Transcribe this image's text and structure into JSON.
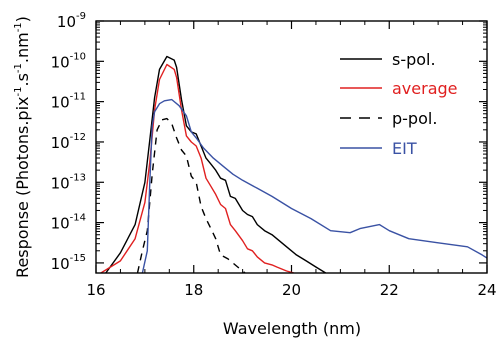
{
  "chart_data": {
    "type": "line",
    "title": "",
    "xlabel": "Wavelength (nm)",
    "ylabel_main": "Response (Photons.pix",
    "ylabel_exp1": "-1",
    "ylabel_mid": ".s",
    "ylabel_exp2": "-1",
    "ylabel_end": ".nm",
    "ylabel_exp3": "-1",
    "ylabel_close": ")",
    "xlim": [
      16,
      24
    ],
    "ylim_log10": [
      -15.25,
      -9
    ],
    "yscale": "log",
    "xticks": [
      16,
      18,
      20,
      22,
      24
    ],
    "xtick_labels": [
      "16",
      "18",
      "20",
      "22",
      "24"
    ],
    "yticks_log10": [
      -9,
      -10,
      -11,
      -12,
      -13,
      -14,
      -15
    ],
    "ytick_base": "10",
    "ytick_exponents": [
      "-9",
      "-10",
      "-11",
      "-12",
      "-13",
      "-14",
      "-15"
    ],
    "legend_position": "upper-right",
    "series": [
      {
        "name": "s-pol.",
        "color": "#000000",
        "dash": "solid",
        "x": [
          16.2,
          16.5,
          16.8,
          17.0,
          17.1,
          17.2,
          17.3,
          17.45,
          17.6,
          17.65,
          17.75,
          17.85,
          17.95,
          18.05,
          18.15,
          18.25,
          18.35,
          18.45,
          18.55,
          18.65,
          18.75,
          18.85,
          19.0,
          19.1,
          19.2,
          19.3,
          19.45,
          19.6,
          19.7,
          19.9,
          20.1,
          20.3,
          20.5,
          20.7
        ],
        "log10y": [
          -15.25,
          -14.75,
          -14.05,
          -13.0,
          -11.95,
          -10.9,
          -10.2,
          -9.88,
          -9.97,
          -10.15,
          -10.95,
          -11.6,
          -11.75,
          -11.8,
          -12.1,
          -12.4,
          -12.55,
          -12.7,
          -12.9,
          -12.95,
          -13.35,
          -13.4,
          -13.7,
          -13.8,
          -13.85,
          -14.05,
          -14.2,
          -14.3,
          -14.4,
          -14.6,
          -14.8,
          -14.95,
          -15.1,
          -15.25
        ]
      },
      {
        "name": "average",
        "color": "#e02020",
        "dash": "solid",
        "x": [
          16.1,
          16.5,
          16.8,
          17.0,
          17.1,
          17.2,
          17.3,
          17.45,
          17.6,
          17.65,
          17.75,
          17.85,
          17.95,
          18.05,
          18.15,
          18.25,
          18.35,
          18.45,
          18.55,
          18.65,
          18.75,
          18.85,
          19.0,
          19.1,
          19.2,
          19.3,
          19.45,
          19.6,
          19.7,
          19.9,
          20.05
        ],
        "log10y": [
          -15.25,
          -14.95,
          -14.4,
          -13.5,
          -12.5,
          -11.2,
          -10.45,
          -10.08,
          -10.2,
          -10.4,
          -11.2,
          -11.85,
          -12.0,
          -12.1,
          -12.4,
          -12.9,
          -13.1,
          -13.3,
          -13.55,
          -13.65,
          -14.05,
          -14.2,
          -14.45,
          -14.65,
          -14.7,
          -14.85,
          -15.0,
          -15.05,
          -15.1,
          -15.2,
          -15.25
        ]
      },
      {
        "name": "p-pol.",
        "color": "#000000",
        "dash": "dashed",
        "x": [
          16.85,
          16.95,
          17.05,
          17.15,
          17.25,
          17.35,
          17.45,
          17.55,
          17.65,
          17.75,
          17.85,
          17.95,
          18.05,
          18.15,
          18.25,
          18.35,
          18.45,
          18.55,
          18.7,
          18.9,
          19.05
        ],
        "log10y": [
          -15.25,
          -14.7,
          -14.2,
          -12.8,
          -11.7,
          -11.45,
          -11.42,
          -11.55,
          -11.9,
          -12.2,
          -12.35,
          -12.85,
          -13.0,
          -13.6,
          -13.9,
          -14.15,
          -14.4,
          -14.8,
          -14.9,
          -15.1,
          -15.25
        ]
      },
      {
        "name": "EIT",
        "color": "#3a52a4",
        "dash": "solid",
        "x": [
          16.95,
          17.05,
          17.1,
          17.15,
          17.2,
          17.3,
          17.4,
          17.55,
          17.7,
          17.85,
          17.95,
          18.05,
          18.2,
          18.4,
          18.6,
          18.8,
          19.0,
          19.3,
          19.6,
          20.0,
          20.4,
          20.8,
          21.2,
          21.4,
          21.6,
          21.8,
          22.0,
          22.4,
          23.0,
          23.6,
          23.9,
          24.0
        ],
        "log10y": [
          -15.25,
          -14.7,
          -13.0,
          -11.6,
          -11.25,
          -11.05,
          -10.98,
          -10.95,
          -11.1,
          -11.35,
          -11.75,
          -11.9,
          -12.15,
          -12.4,
          -12.6,
          -12.8,
          -12.95,
          -13.15,
          -13.35,
          -13.65,
          -13.9,
          -14.2,
          -14.25,
          -14.15,
          -14.1,
          -14.05,
          -14.2,
          -14.4,
          -14.5,
          -14.6,
          -14.8,
          -14.88
        ]
      }
    ]
  }
}
